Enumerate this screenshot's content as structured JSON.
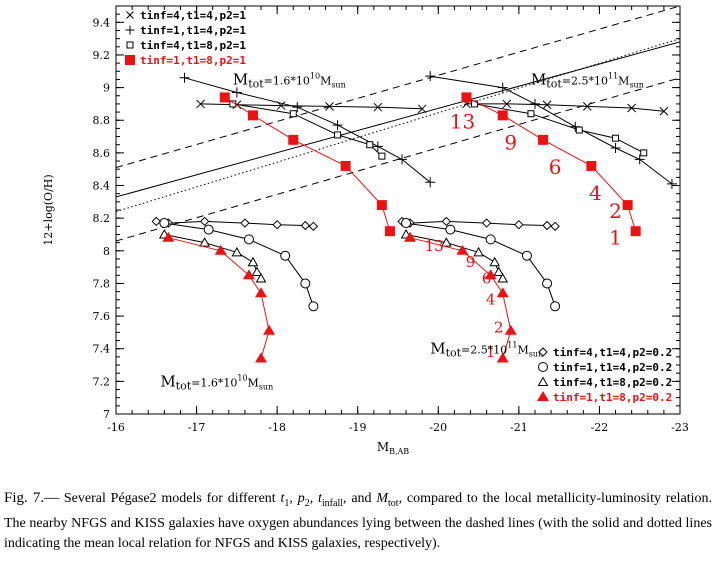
{
  "chart_data": {
    "type": "line",
    "title": "",
    "xlabel": "M_B,AB",
    "ylabel": "12+log(O/H)",
    "xlim": [
      -16,
      -23
    ],
    "ylim": [
      7,
      9.5
    ],
    "x_ticks": [
      -16,
      -17,
      -18,
      -19,
      -20,
      -21,
      -22,
      -23
    ],
    "y_ticks": [
      7,
      7.2,
      7.4,
      7.6,
      7.8,
      8,
      8.2,
      8.4,
      8.6,
      8.8,
      9,
      9.2,
      9.4
    ],
    "grid": false,
    "legend_top": [
      {
        "label": "tinf=4,t1=4,p2=1",
        "marker": "x",
        "color": "#000000"
      },
      {
        "label": "tinf=1,t1=4,p2=1",
        "marker": "+",
        "color": "#000000"
      },
      {
        "label": "tinf=4,t1=8,p2=1",
        "marker": "open-square",
        "color": "#000000"
      },
      {
        "label": "tinf=1,t1=8,p2=1",
        "marker": "filled-square",
        "color": "#ee1111"
      }
    ],
    "legend_bottom": [
      {
        "label": "tinf=4,t1=4,p2=0.2",
        "marker": "open-diamond",
        "color": "#000000"
      },
      {
        "label": "tinf=1,t1=4,p2=0.2",
        "marker": "open-circle",
        "color": "#000000"
      },
      {
        "label": "tinf=4,t1=8,p2=0.2",
        "marker": "open-triangle",
        "color": "#000000"
      },
      {
        "label": "tinf=1,t1=8,p2=0.2",
        "marker": "filled-triangle",
        "color": "#ee1111"
      }
    ],
    "series": [
      {
        "marker": "x",
        "color": "#000000",
        "points": [
          [
            -17.05,
            8.9
          ],
          [
            -17.5,
            8.895
          ],
          [
            -18.05,
            8.89
          ],
          [
            -18.65,
            8.885
          ],
          [
            -19.25,
            8.88
          ],
          [
            -19.8,
            8.87
          ],
          [
            -20.35,
            8.9
          ],
          [
            -20.85,
            8.9
          ],
          [
            -21.35,
            8.895
          ],
          [
            -21.85,
            8.885
          ],
          [
            -22.4,
            8.875
          ],
          [
            -22.8,
            8.855
          ]
        ]
      },
      {
        "marker": "+",
        "color": "#000000",
        "points": [
          [
            -16.85,
            9.06
          ],
          [
            -17.5,
            8.97
          ],
          [
            -18.25,
            8.88
          ],
          [
            -18.75,
            8.77
          ],
          [
            -19.25,
            8.64
          ],
          [
            -19.55,
            8.56
          ],
          [
            -19.9,
            8.42
          ],
          [
            -19.9,
            9.07
          ],
          [
            -20.8,
            9.0
          ],
          [
            -21.2,
            8.9
          ],
          [
            -21.7,
            8.76
          ],
          [
            -22.2,
            8.63
          ],
          [
            -22.5,
            8.56
          ],
          [
            -22.9,
            8.41
          ]
        ]
      },
      {
        "marker": "open-square",
        "color": "#000000",
        "points": [
          [
            -17.35,
            8.94
          ],
          [
            -17.45,
            8.9
          ],
          [
            -18.2,
            8.84
          ],
          [
            -18.75,
            8.71
          ],
          [
            -19.15,
            8.65
          ],
          [
            -19.3,
            8.58
          ],
          [
            -20.35,
            8.94
          ],
          [
            -20.45,
            8.9
          ],
          [
            -21.15,
            8.84
          ],
          [
            -21.75,
            8.74
          ],
          [
            -22.2,
            8.69
          ],
          [
            -22.55,
            8.6
          ]
        ]
      },
      {
        "marker": "filled-square",
        "color": "#ee1111",
        "points": [
          [
            -17.35,
            8.94
          ],
          [
            -17.7,
            8.83
          ],
          [
            -18.2,
            8.68
          ],
          [
            -18.85,
            8.52
          ],
          [
            -19.3,
            8.28
          ],
          [
            -19.4,
            8.12
          ],
          [
            -20.35,
            8.94
          ],
          [
            -20.8,
            8.83
          ],
          [
            -21.3,
            8.68
          ],
          [
            -21.9,
            8.52
          ],
          [
            -22.35,
            8.28
          ],
          [
            -22.45,
            8.12
          ]
        ]
      },
      {
        "marker": "open-diamond",
        "color": "#000000",
        "points": [
          [
            -16.5,
            8.18
          ],
          [
            -16.65,
            8.17
          ],
          [
            -17.1,
            8.18
          ],
          [
            -17.6,
            8.17
          ],
          [
            -18.0,
            8.16
          ],
          [
            -18.35,
            8.155
          ],
          [
            -18.45,
            8.15
          ],
          [
            -19.55,
            8.18
          ],
          [
            -19.65,
            8.17
          ],
          [
            -20.1,
            8.18
          ],
          [
            -20.6,
            8.17
          ],
          [
            -21.0,
            8.16
          ],
          [
            -21.35,
            8.155
          ],
          [
            -21.45,
            8.15
          ]
        ]
      },
      {
        "marker": "open-circle",
        "color": "#000000",
        "points": [
          [
            -16.6,
            8.17
          ],
          [
            -17.15,
            8.13
          ],
          [
            -17.65,
            8.07
          ],
          [
            -18.1,
            7.97
          ],
          [
            -18.35,
            7.8
          ],
          [
            -18.45,
            7.66
          ],
          [
            -19.6,
            8.17
          ],
          [
            -20.15,
            8.13
          ],
          [
            -20.65,
            8.07
          ],
          [
            -21.1,
            7.97
          ],
          [
            -21.35,
            7.8
          ],
          [
            -21.45,
            7.66
          ]
        ]
      },
      {
        "marker": "open-triangle",
        "color": "#000000",
        "points": [
          [
            -16.6,
            8.1
          ],
          [
            -17.1,
            8.05
          ],
          [
            -17.5,
            7.99
          ],
          [
            -17.7,
            7.93
          ],
          [
            -17.75,
            7.87
          ],
          [
            -17.8,
            7.83
          ],
          [
            -19.6,
            8.1
          ],
          [
            -20.1,
            8.05
          ],
          [
            -20.5,
            7.99
          ],
          [
            -20.7,
            7.93
          ],
          [
            -20.75,
            7.87
          ],
          [
            -20.8,
            7.83
          ]
        ]
      },
      {
        "marker": "filled-triangle",
        "color": "#ee1111",
        "points": [
          [
            -16.65,
            8.08
          ],
          [
            -17.3,
            8.0
          ],
          [
            -17.65,
            7.85
          ],
          [
            -17.8,
            7.74
          ],
          [
            -17.9,
            7.51
          ],
          [
            -17.8,
            7.34
          ],
          [
            -19.65,
            8.08
          ],
          [
            -20.3,
            8.0
          ],
          [
            -20.65,
            7.85
          ],
          [
            -20.8,
            7.74
          ],
          [
            -20.9,
            7.51
          ],
          [
            -20.8,
            7.34
          ]
        ]
      }
    ],
    "lines": [
      {
        "style": "dashed",
        "color": "#000000",
        "points": [
          [
            -16,
            8.51
          ],
          [
            -23,
            9.5
          ]
        ]
      },
      {
        "style": "dashed",
        "color": "#000000",
        "points": [
          [
            -16,
            8.06
          ],
          [
            -23,
            9.06
          ]
        ]
      },
      {
        "style": "solid",
        "color": "#000000",
        "points": [
          [
            -16,
            8.33
          ],
          [
            -23,
            9.28
          ]
        ]
      },
      {
        "style": "dotted",
        "color": "#000000",
        "points": [
          [
            -16,
            8.24
          ],
          [
            -23,
            9.3
          ]
        ]
      }
    ],
    "annotations": [
      {
        "text": "13",
        "x": -20.3,
        "y": 8.75,
        "color": "#ee1111",
        "size": "large"
      },
      {
        "text": "9",
        "x": -20.9,
        "y": 8.62,
        "color": "#ee1111",
        "size": "large"
      },
      {
        "text": "6",
        "x": -21.45,
        "y": 8.47,
        "color": "#ee1111",
        "size": "large"
      },
      {
        "text": "4",
        "x": -21.95,
        "y": 8.31,
        "color": "#ee1111",
        "size": "large"
      },
      {
        "text": "2",
        "x": -22.2,
        "y": 8.2,
        "color": "#ee1111",
        "size": "large"
      },
      {
        "text": "1",
        "x": -22.2,
        "y": 8.04,
        "color": "#ee1111",
        "size": "large"
      },
      {
        "text": "13",
        "x": -19.95,
        "y": 8.0,
        "color": "#ee1111",
        "size": "small"
      },
      {
        "text": "9",
        "x": -20.4,
        "y": 7.9,
        "color": "#ee1111",
        "size": "small"
      },
      {
        "text": "6",
        "x": -20.6,
        "y": 7.8,
        "color": "#ee1111",
        "size": "small"
      },
      {
        "text": "4",
        "x": -20.65,
        "y": 7.67,
        "color": "#ee1111",
        "size": "small"
      },
      {
        "text": "2",
        "x": -20.75,
        "y": 7.5,
        "color": "#ee1111",
        "size": "small"
      },
      {
        "text": "1",
        "x": -20.65,
        "y": 7.35,
        "color": "#ee1111",
        "size": "small"
      }
    ],
    "mass_labels": [
      {
        "main": "M",
        "sub": "tot",
        "value": "=1.6*10",
        "exp": "10",
        "unit": "M",
        "unit_sub": "sun",
        "x": -17.45,
        "y": 9.02
      },
      {
        "main": "M",
        "sub": "tot",
        "value": "=2.5*10",
        "exp": "11",
        "unit": "M",
        "unit_sub": "sun",
        "x": -21.15,
        "y": 9.02
      },
      {
        "main": "M",
        "sub": "tot",
        "value": "=2.5*10",
        "exp": "11",
        "unit": "M",
        "unit_sub": "sun",
        "x": -19.9,
        "y": 7.37
      },
      {
        "main": "M",
        "sub": "tot",
        "value": "=1.6*10",
        "exp": "10",
        "unit": "M",
        "unit_sub": "sun",
        "x": -16.55,
        "y": 7.17
      }
    ]
  },
  "caption": {
    "label": "Fig. 7.—",
    "p1": " Several Pégase2 models for different ",
    "t1": "t",
    "t1_sub": "1",
    "sep1": ", ",
    "p2": "p",
    "p2_sub": "2",
    "sep2": ", ",
    "tin": "t",
    "tin_sub": "infall",
    "sep3": ", and ",
    "mt": "M",
    "mt_sub": "tot",
    "p5": ", compared to the local metallicity-luminosity relation. The nearby NFGS and KISS galaxies have oxygen abundances lying between the dashed lines (with the solid and dotted lines indicating the mean local relation for NFGS and KISS galaxies, respectively)."
  }
}
